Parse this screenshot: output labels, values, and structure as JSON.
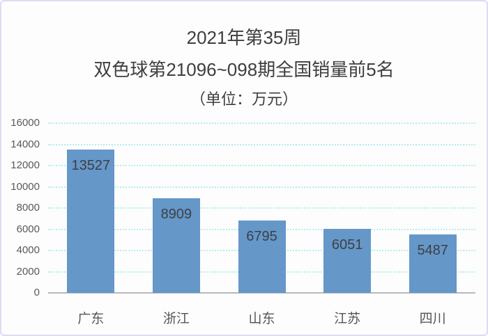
{
  "title": {
    "line1": "2021年第35周",
    "line2": "双色球第21096~098期全国销量前5名",
    "line3": "（单位：万元）"
  },
  "chart_data": {
    "type": "bar",
    "title": "2021年第35周 双色球第21096~098期全国销量前5名（单位：万元）",
    "categories": [
      "广东",
      "浙江",
      "山东",
      "江苏",
      "四川"
    ],
    "values": [
      13527,
      8909,
      6795,
      6051,
      5487
    ],
    "xlabel": "",
    "ylabel": "",
    "ylim": [
      0,
      16000
    ],
    "yticks": [
      0,
      2000,
      4000,
      6000,
      8000,
      10000,
      12000,
      14000,
      16000
    ],
    "grid": "horizontal-dotted",
    "legend_position": "none",
    "value_label_position": "inside-top"
  },
  "colors": {
    "bar": "#6597c9",
    "gridline": "#b4ecf0",
    "axis_line": "#b6b9ba",
    "tick_label": "#595959",
    "value_label": "#3e4044",
    "category_label": "#555555",
    "title_text": "#3e3e3e",
    "frame_border": "#dedcf2",
    "background": "#fdfdfd"
  }
}
